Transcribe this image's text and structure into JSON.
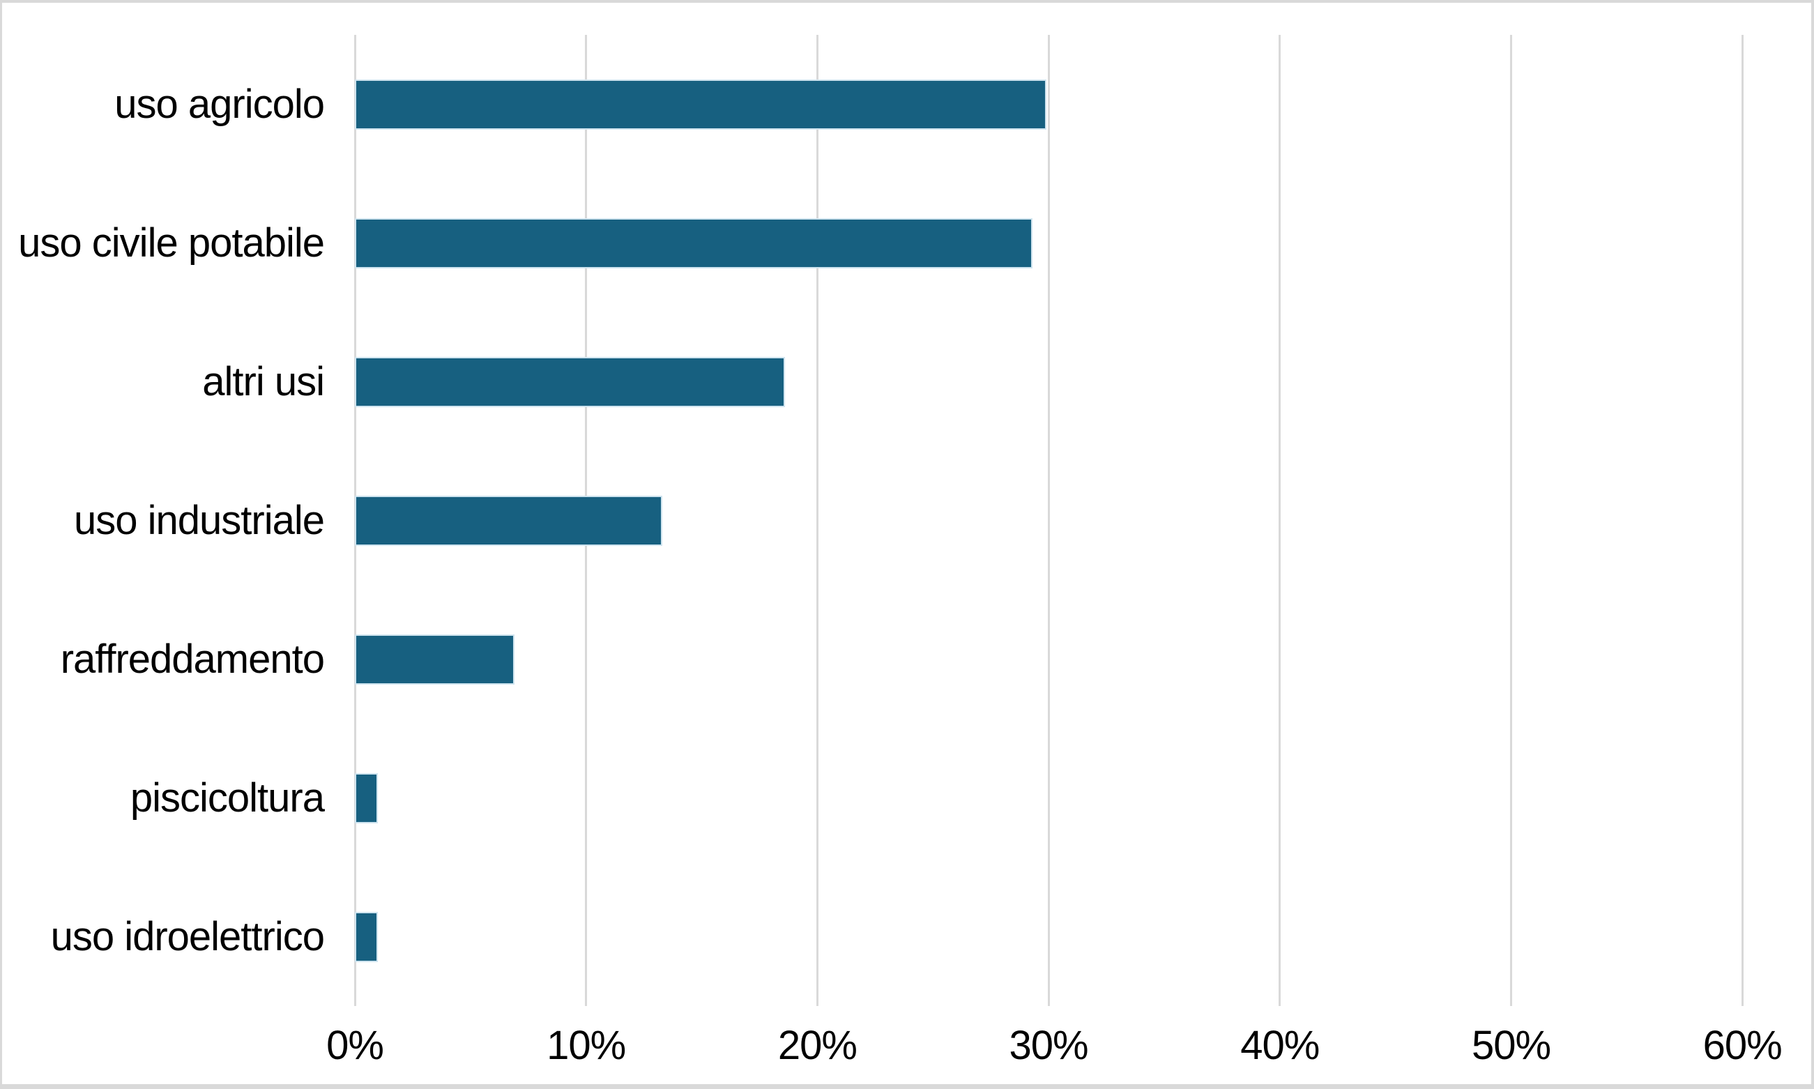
{
  "chart_data": {
    "type": "bar",
    "orientation": "horizontal",
    "title": "",
    "xlabel": "",
    "ylabel": "",
    "categories": [
      "uso agricolo",
      "uso civile potabile",
      "altri usi",
      "uso industriale",
      "raffreddamento",
      "piscicoltura",
      "uso idroelettrico"
    ],
    "values": [
      29.9,
      29.3,
      18.6,
      13.3,
      6.9,
      1.0,
      1.0
    ],
    "unit": "%",
    "xlim": [
      0,
      60
    ],
    "x_ticks": [
      {
        "value": 0,
        "label": "0%"
      },
      {
        "value": 10,
        "label": "10%"
      },
      {
        "value": 20,
        "label": "20%"
      },
      {
        "value": 30,
        "label": "30%"
      },
      {
        "value": 40,
        "label": "40%"
      },
      {
        "value": 50,
        "label": "50%"
      },
      {
        "value": 60,
        "label": "60%"
      }
    ],
    "grid": "vertical-only",
    "legend": "none",
    "colors": {
      "bar_fill": "#176080",
      "bar_border": "#cfe4ef",
      "gridline": "#d9d9d9",
      "frame_border": "#d9d9d9",
      "text": "#000000",
      "background": "#ffffff"
    }
  }
}
